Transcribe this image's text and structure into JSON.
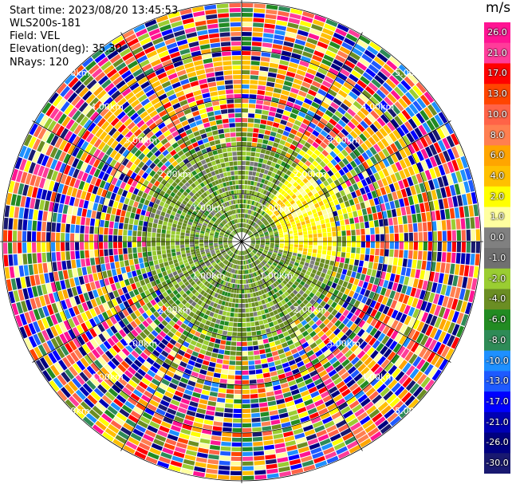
{
  "info": {
    "start_time": "Start time: 2023/08/20 13:45:53",
    "site": "WLS200s-181",
    "field": "Field: VEL",
    "elevation": "Elevation(deg): 35.30",
    "nrays": "NRays: 120"
  },
  "colorbar": {
    "unit": "m/s",
    "ticks": [
      "26.0",
      "21.0",
      "17.0",
      "13.0",
      "10.0",
      "8.0",
      "6.0",
      "4.0",
      "2.0",
      "1.0",
      "0.0",
      "-1.0",
      "-2.0",
      "-4.0",
      "-6.0",
      "-8.0",
      "-10.0",
      "-13.0",
      "-17.0",
      "-21.0",
      "-26.0",
      "-30.0"
    ],
    "colors": [
      "#ff1493",
      "#ff3c9a",
      "#ff0000",
      "#ff4500",
      "#ff6347",
      "#ff7f50",
      "#ffa500",
      "#ffc000",
      "#ffff00",
      "#ffffa0",
      "#808080",
      "#707070",
      "#9acd32",
      "#6b8e23",
      "#228b22",
      "#2e8b57",
      "#1e90ff",
      "#1e5aff",
      "#0000ff",
      "#0000b4",
      "#000080",
      "#191970"
    ]
  },
  "range_labels": [
    "1.00km",
    "2.00km",
    "3.00km",
    "4.00km",
    "5.00km"
  ],
  "scan": {
    "nrays": 120,
    "elevation_deg": 35.3
  }
}
